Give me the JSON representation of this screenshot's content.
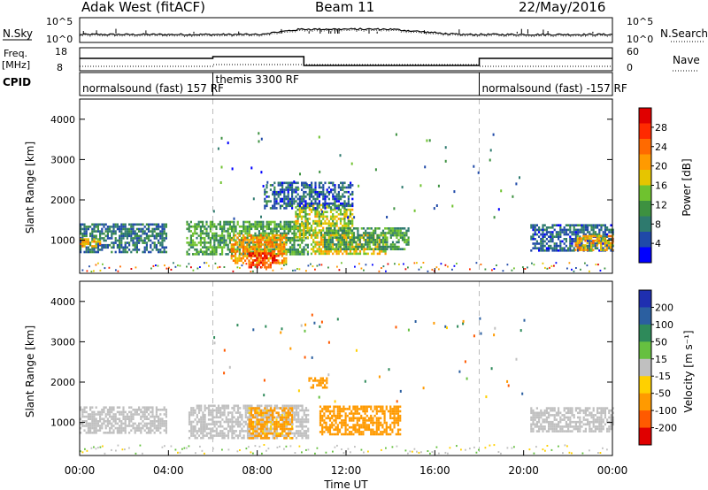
{
  "header": {
    "station": "Adak West (fitACF)",
    "beam": "Beam 11",
    "date": "22/May/2016"
  },
  "noise_panel": {
    "left_label": "N.Sky",
    "left_ticks": [
      "10^5",
      "10^0"
    ],
    "right_ticks": [
      "10^5",
      "10^0"
    ],
    "right_label": "N.Search"
  },
  "freq_panel": {
    "left_label_1": "Freq.",
    "left_label_2": "[MHz]",
    "left_ticks": [
      "18",
      "8"
    ],
    "right_ticks": [
      "60",
      "0"
    ],
    "right_label": "Nave"
  },
  "cpid_panel": {
    "left_label": "CPID",
    "segments": [
      {
        "label": "normalsound (fast) 157 RF",
        "start_hour": 0
      },
      {
        "label": "themis 3300 RF",
        "start_hour": 6
      },
      {
        "label": "normalsound (fast) -157 RF",
        "start_hour": 18
      }
    ]
  },
  "x_axis": {
    "ticks": [
      "00:00",
      "04:00",
      "08:00",
      "12:00",
      "16:00",
      "20:00",
      "00:00"
    ],
    "tick_hours": [
      0,
      4,
      8,
      12,
      16,
      20,
      24
    ],
    "label": "Time UT"
  },
  "power_panel": {
    "ylabel": "Slant Range [km]",
    "yticks": [
      "4000",
      "3000",
      "2000",
      "1000"
    ],
    "ytick_values": [
      4000,
      3000,
      2000,
      1000
    ],
    "colorbar_label": "Power [dB]",
    "colorbar_ticks": [
      "28",
      "24",
      "20",
      "16",
      "12",
      "8",
      "4"
    ]
  },
  "velocity_panel": {
    "ylabel": "Slant Range [km]",
    "yticks": [
      "4000",
      "3000",
      "2000",
      "1000"
    ],
    "ytick_values": [
      4000,
      3000,
      2000,
      1000
    ],
    "colorbar_label": "Velocity [m s⁻¹]",
    "colorbar_ticks": [
      "200",
      "100",
      "50",
      "15",
      "-15",
      "-50",
      "-100",
      "-200"
    ]
  },
  "colors": {
    "power_scale": [
      "#0000ff",
      "#1f49a8",
      "#2e7a6e",
      "#3d9140",
      "#6fc22f",
      "#e6c500",
      "#ff9a00",
      "#ff6a00",
      "#ff2a00",
      "#e00000"
    ],
    "velocity_scale": [
      "#1f2fb0",
      "#2b5fa0",
      "#2e8a5a",
      "#66c040",
      "#c0c0c0",
      "#ffd000",
      "#ff9a00",
      "#ff5a00",
      "#e00000"
    ],
    "grey": "#c8c8c8"
  },
  "chart_data": [
    {
      "type": "heatmap",
      "title": "Power",
      "x_range_hours": [
        0,
        24
      ],
      "ylim": [
        180,
        4500
      ],
      "units": "dB",
      "scale": [
        0,
        30
      ],
      "regions": [
        {
          "hours": [
            0,
            3.9
          ],
          "range_km": [
            720,
            1420
          ],
          "power": 7
        },
        {
          "hours": [
            0,
            0.9
          ],
          "range_km": [
            850,
            1050
          ],
          "power": 18
        },
        {
          "hours": [
            4.8,
            10.3
          ],
          "range_km": [
            630,
            1480
          ],
          "power": 11
        },
        {
          "hours": [
            6.8,
            9.3
          ],
          "range_km": [
            430,
            1150
          ],
          "power": 20
        },
        {
          "hours": [
            7.6,
            9.0
          ],
          "range_km": [
            330,
            700
          ],
          "power": 26
        },
        {
          "hours": [
            9.7,
            12.3
          ],
          "range_km": [
            1050,
            1900
          ],
          "power": 15
        },
        {
          "hours": [
            10.4,
            13.8
          ],
          "range_km": [
            680,
            1150
          ],
          "power": 17
        },
        {
          "hours": [
            11.0,
            14.8
          ],
          "range_km": [
            760,
            1320
          ],
          "power": 10
        },
        {
          "hours": [
            8.3,
            12.3
          ],
          "range_km": [
            1800,
            2450
          ],
          "power": 6
        },
        {
          "hours": [
            20.3,
            24
          ],
          "range_km": [
            720,
            1400
          ],
          "power": 6
        },
        {
          "hours": [
            22.3,
            24
          ],
          "range_km": [
            780,
            1130
          ],
          "power": 18
        }
      ]
    },
    {
      "type": "heatmap",
      "title": "Velocity",
      "x_range_hours": [
        0,
        24
      ],
      "ylim": [
        180,
        4500
      ],
      "units": "m s^-1",
      "scale": [
        -200,
        200
      ],
      "regions": [
        {
          "hours": [
            0,
            3.9
          ],
          "range_km": [
            740,
            1400
          ],
          "velocity": 0
        },
        {
          "hours": [
            4.9,
            10.3
          ],
          "range_km": [
            640,
            1440
          ],
          "velocity": 0
        },
        {
          "hours": [
            7.6,
            9.6
          ],
          "range_km": [
            600,
            1380
          ],
          "velocity": -60
        },
        {
          "hours": [
            10.8,
            14.4
          ],
          "range_km": [
            700,
            1420
          ],
          "velocity": -80
        },
        {
          "hours": [
            10.3,
            11.1
          ],
          "range_km": [
            1880,
            2120
          ],
          "velocity": -80
        },
        {
          "hours": [
            20.3,
            24
          ],
          "range_km": [
            760,
            1380
          ],
          "velocity": 0
        }
      ]
    }
  ]
}
